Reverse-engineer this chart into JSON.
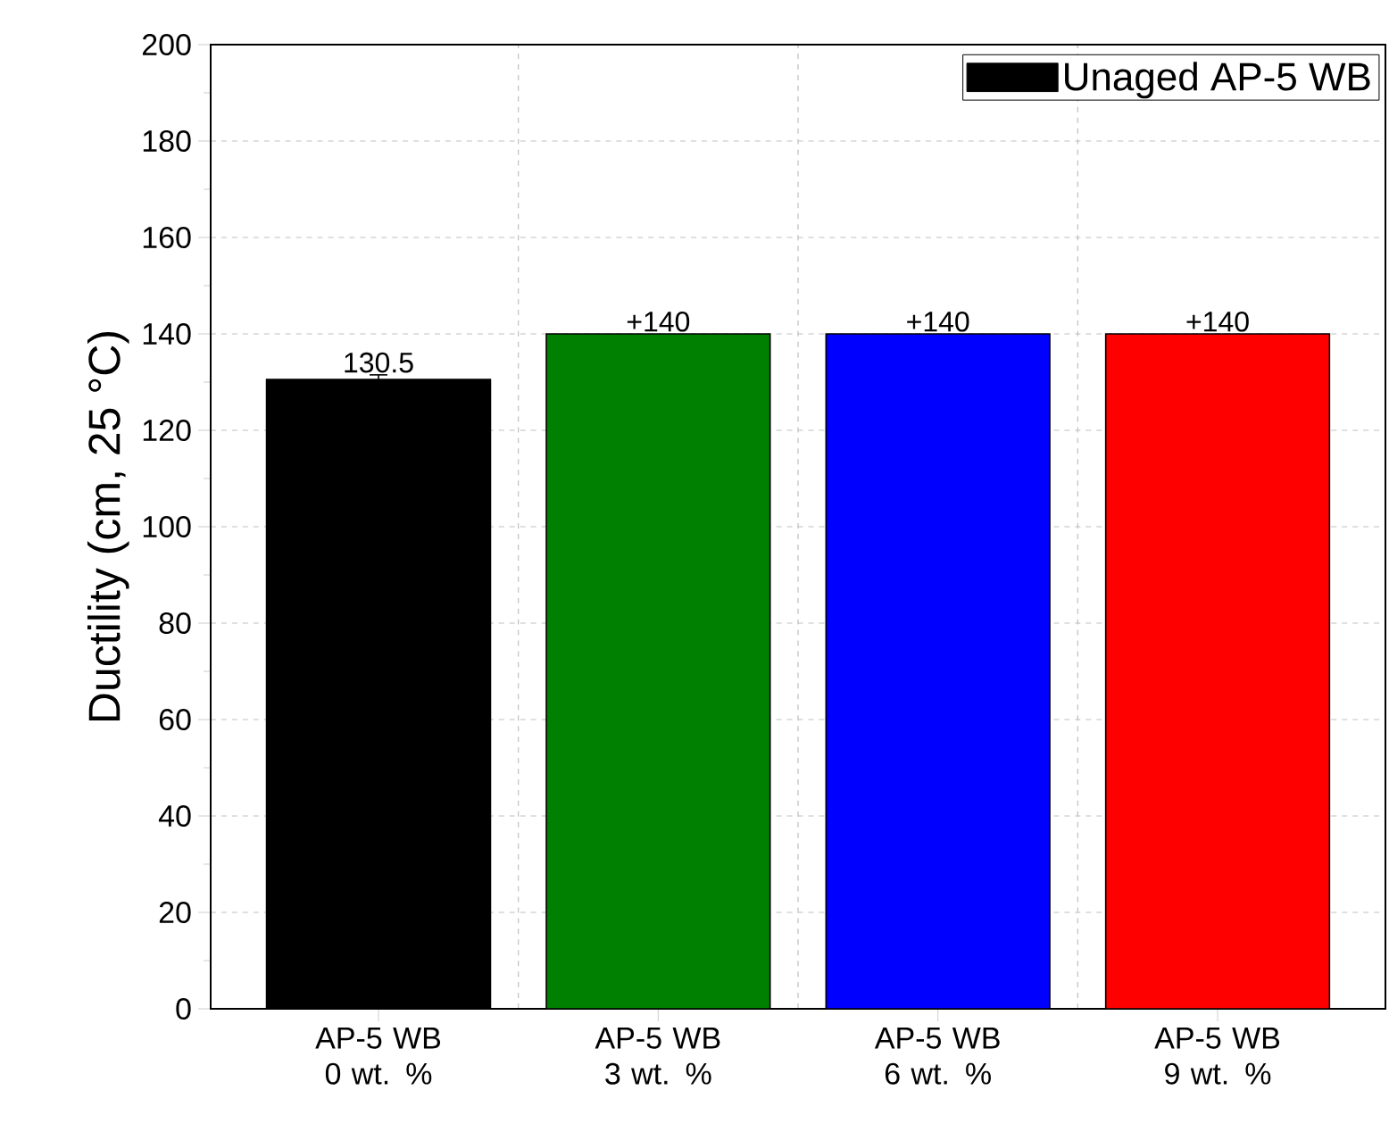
{
  "chart_data": {
    "type": "bar",
    "categories": [
      "AP-5 WB 0 wt. %",
      "AP-5 WB 3 wt. %",
      "AP-5 WB 6 wt. %",
      "AP-5 WB 9 wt. %"
    ],
    "series": [
      {
        "name": "Unaged AP-5 WB",
        "colors": [
          "#000000",
          "#008000",
          "#0000ff",
          "#ff0000"
        ],
        "values": [
          130.5,
          140,
          140,
          140
        ],
        "errors": [
          1,
          null,
          null,
          null
        ],
        "value_labels": [
          "130.5",
          "+140",
          "+140",
          "+140"
        ]
      }
    ],
    "ylabel": "Ductility (cm, 25 °C)",
    "ylim": [
      0,
      200
    ],
    "yticks": [
      0,
      20,
      40,
      60,
      80,
      100,
      120,
      140,
      160,
      180,
      200
    ],
    "grid": true,
    "legend": "top right"
  }
}
